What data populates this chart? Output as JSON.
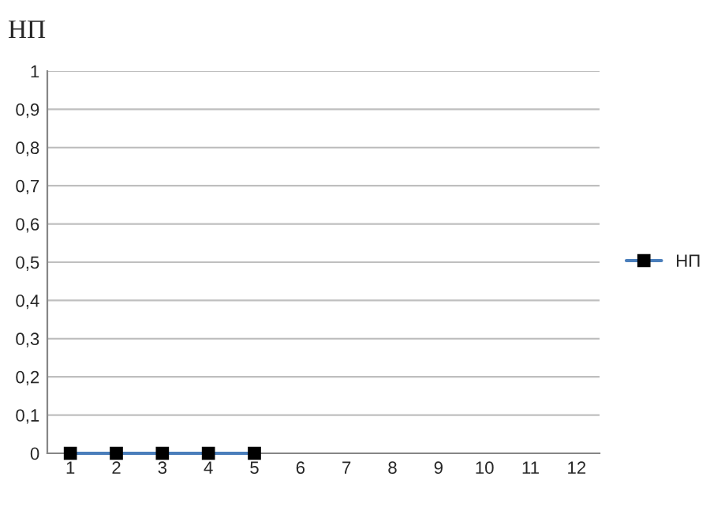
{
  "chart_data": {
    "type": "line",
    "title": "НП",
    "categories": [
      "1",
      "2",
      "3",
      "4",
      "5",
      "6",
      "7",
      "8",
      "9",
      "10",
      "11",
      "12"
    ],
    "series": [
      {
        "name": "НП",
        "color": "#4a7ebb",
        "values": [
          0,
          0,
          0,
          0,
          0,
          null,
          null,
          null,
          null,
          null,
          null,
          null
        ]
      }
    ],
    "ylim": [
      0,
      1
    ],
    "yticks": [
      0,
      {
        "value": 0.1,
        "label": "0,1"
      },
      {
        "value": 0.2,
        "label": "0,2"
      },
      {
        "value": 0.3,
        "label": "0,3"
      },
      {
        "value": 0.4,
        "label": "0,4"
      },
      {
        "value": 0.5,
        "label": "0,5"
      },
      {
        "value": 0.6,
        "label": "0,6"
      },
      {
        "value": 0.7,
        "label": "0,7"
      },
      {
        "value": 0.8,
        "label": "0,8"
      },
      {
        "value": 0.9,
        "label": "0,9"
      },
      1
    ],
    "grid": "y",
    "legend": "right",
    "marker": "square",
    "line_style": "solid"
  }
}
